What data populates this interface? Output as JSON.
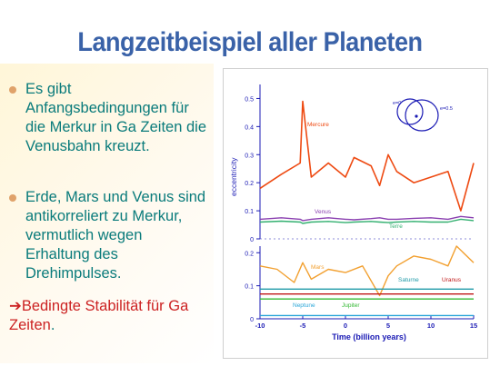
{
  "slide": {
    "title": "Langzeitbeispiel aller Planeten",
    "bullets": [
      "Es gibt Anfangsbedingungen für die Merkur in Ga Zeiten die Venusbahn kreuzt.",
      "Erde, Mars und Venus sind antikorreliert zu Merkur, vermutlich wegen Erhaltung des Drehimpulses."
    ],
    "conclusion": {
      "arrow": "➔",
      "highlight": "Bedingte Stabilität für Ga Zeiten",
      "tail": "."
    }
  },
  "figure": {
    "ylabel": "eccentricity",
    "xlabel": "Time  (billion years)",
    "inset_label_left": "e=0",
    "inset_label_right": "e=0.5",
    "labels": {
      "mercury": "Mercure",
      "venus": "Venus",
      "earth": "Terre",
      "mars": "Mars",
      "saturn": "Saturne",
      "uranus": "Uranus",
      "neptune": "Neptune",
      "jupiter": "Jupiter"
    },
    "colors": {
      "mercury": "#ee4a12",
      "venus": "#8a3fb0",
      "earth": "#33b070",
      "mars": "#f2a030",
      "saturn": "#1f9aa8",
      "uranus": "#c01818",
      "neptune": "#2aa6d8",
      "jupiter": "#33b833",
      "axis": "#1a1ab4"
    }
  },
  "chart_data": [
    {
      "type": "line",
      "x": [
        -10,
        -7.5,
        -5.3,
        -5,
        -4,
        -2,
        0,
        1,
        3,
        4,
        5,
        6,
        8,
        10,
        12,
        13.5,
        15
      ],
      "series": [
        {
          "name": "Mercure",
          "values": [
            0.18,
            0.23,
            0.27,
            0.49,
            0.22,
            0.27,
            0.22,
            0.29,
            0.26,
            0.19,
            0.3,
            0.24,
            0.2,
            0.22,
            0.24,
            0.1,
            0.27
          ]
        },
        {
          "name": "Venus",
          "values": [
            0.07,
            0.075,
            0.07,
            0.065,
            0.07,
            0.075,
            0.07,
            0.068,
            0.072,
            0.075,
            0.07,
            0.07,
            0.073,
            0.075,
            0.07,
            0.08,
            0.075
          ]
        },
        {
          "name": "Terre",
          "values": [
            0.06,
            0.063,
            0.06,
            0.055,
            0.06,
            0.062,
            0.058,
            0.06,
            0.062,
            0.06,
            0.058,
            0.06,
            0.062,
            0.06,
            0.06,
            0.07,
            0.065
          ]
        }
      ],
      "xlim": [
        -10,
        15
      ],
      "ylim": [
        0,
        0.55
      ],
      "yticks": [
        0,
        0.1,
        0.2,
        0.3,
        0.4,
        0.5
      ],
      "ylabel": "eccentricity"
    },
    {
      "type": "line",
      "x": [
        -10,
        -8,
        -6,
        -5,
        -4,
        -2,
        0,
        2,
        4,
        5,
        6,
        8,
        10,
        12,
        13,
        15
      ],
      "series": [
        {
          "name": "Mars",
          "values": [
            0.16,
            0.15,
            0.11,
            0.17,
            0.12,
            0.15,
            0.14,
            0.16,
            0.07,
            0.13,
            0.16,
            0.19,
            0.18,
            0.16,
            0.22,
            0.17
          ]
        },
        {
          "name": "Saturne",
          "values": [
            0.09,
            0.09,
            0.09,
            0.09,
            0.09,
            0.09,
            0.09,
            0.09,
            0.09,
            0.09,
            0.09,
            0.09,
            0.09,
            0.09,
            0.09,
            0.09
          ]
        },
        {
          "name": "Uranus",
          "values": [
            0.075,
            0.075,
            0.075,
            0.075,
            0.075,
            0.075,
            0.075,
            0.075,
            0.075,
            0.075,
            0.075,
            0.075,
            0.075,
            0.075,
            0.075,
            0.075
          ]
        },
        {
          "name": "Jupiter",
          "values": [
            0.06,
            0.06,
            0.06,
            0.06,
            0.06,
            0.06,
            0.06,
            0.06,
            0.06,
            0.06,
            0.06,
            0.06,
            0.06,
            0.06,
            0.06,
            0.06
          ]
        },
        {
          "name": "Neptune",
          "values": [
            0.01,
            0.01,
            0.01,
            0.01,
            0.01,
            0.01,
            0.01,
            0.01,
            0.01,
            0.01,
            0.01,
            0.01,
            0.01,
            0.01,
            0.01,
            0.01
          ]
        }
      ],
      "xlim": [
        -10,
        15
      ],
      "xticks": [
        -10,
        -5,
        0,
        5,
        10,
        15
      ],
      "ylim": [
        0,
        0.22
      ],
      "yticks": [
        0,
        0.1,
        0.2
      ],
      "xlabel": "Time  (billion years)"
    }
  ]
}
